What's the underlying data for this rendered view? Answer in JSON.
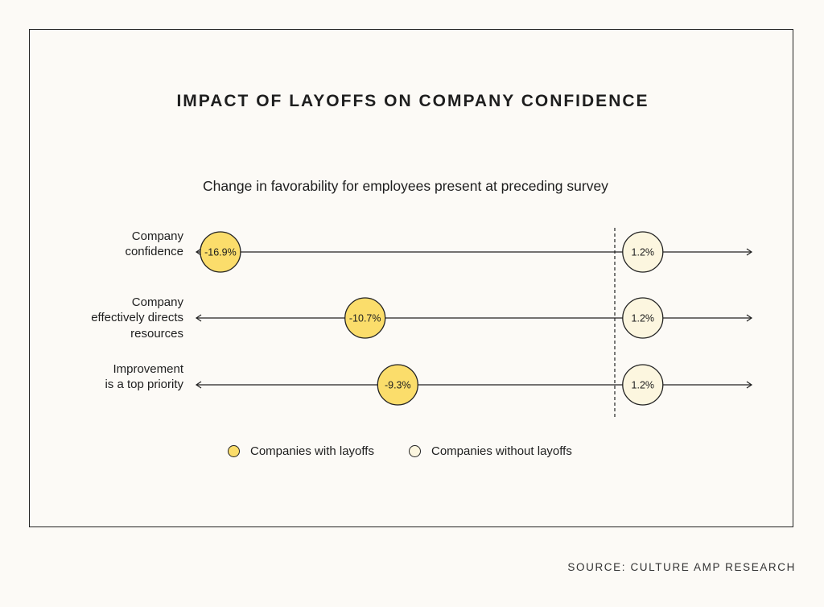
{
  "title": "IMPACT OF LAYOFFS ON COMPANY CONFIDENCE",
  "subtitle": "Change in favorability for employees present at preceding survey",
  "source": "SOURCE: CULTURE AMP RESEARCH",
  "colors": {
    "with_layoffs": "#fbdd6b",
    "without_layoffs": "#fcf6df",
    "stroke": "#222222",
    "background": "#fcfaf6"
  },
  "chart_data": {
    "type": "scatter",
    "title": "IMPACT OF LAYOFFS ON COMPANY CONFIDENCE",
    "subtitle": "Change in favorability for employees present at preceding survey",
    "categories": [
      "Company confidence",
      "Company effectively directs resources",
      "Improvement is a top priority"
    ],
    "category_lines": [
      [
        "Company",
        "confidence"
      ],
      [
        "Company",
        "effectively directs",
        "resources"
      ],
      [
        "Improvement",
        "is a top priority"
      ]
    ],
    "series": [
      {
        "name": "Companies with layoffs",
        "values": [
          -16.9,
          -10.7,
          -9.3
        ],
        "labels": [
          "-16.9%",
          "-10.7%",
          "-9.3%"
        ],
        "color": "#fbdd6b"
      },
      {
        "name": "Companies without layoffs",
        "values": [
          1.2,
          1.2,
          1.2
        ],
        "labels": [
          "1.2%",
          "1.2%",
          "1.2%"
        ],
        "color": "#fcf6df"
      }
    ],
    "zero_line": "dashed vertical at 0",
    "legend_placement": "bottom-center",
    "grid": false
  }
}
